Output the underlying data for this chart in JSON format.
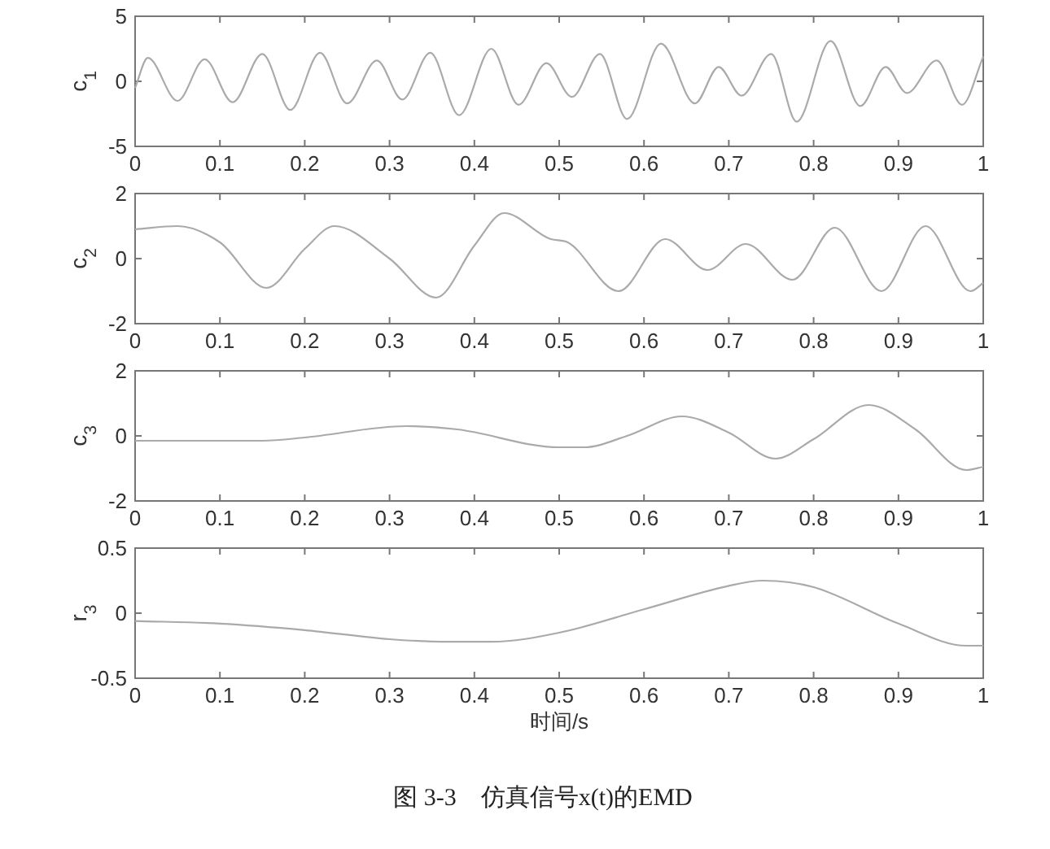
{
  "chart_data": [
    {
      "type": "line",
      "ylabel": "c$_{1}$",
      "xlim": [
        0,
        1
      ],
      "ylim": [
        -5,
        5
      ],
      "xticks": [
        0,
        0.1,
        0.2,
        0.3,
        0.4,
        0.5,
        0.6,
        0.7,
        0.8,
        0.9,
        1
      ],
      "yticks": [
        -5,
        0,
        5
      ],
      "grid": false,
      "series": [
        {
          "color": "#aaaaaa",
          "x": [
            0,
            0.015,
            0.05,
            0.082,
            0.115,
            0.15,
            0.183,
            0.218,
            0.25,
            0.285,
            0.315,
            0.348,
            0.382,
            0.42,
            0.452,
            0.485,
            0.515,
            0.548,
            0.58,
            0.62,
            0.66,
            0.688,
            0.715,
            0.75,
            0.78,
            0.82,
            0.855,
            0.885,
            0.91,
            0.945,
            0.975,
            1
          ],
          "values": [
            -0.5,
            1.8,
            -1.5,
            1.7,
            -1.6,
            2.1,
            -2.2,
            2.2,
            -1.7,
            1.6,
            -1.4,
            2.2,
            -2.6,
            2.5,
            -1.8,
            1.4,
            -1.2,
            2.1,
            -2.9,
            2.9,
            -1.7,
            1.1,
            -1.1,
            2.1,
            -3.1,
            3.1,
            -1.9,
            1.1,
            -0.9,
            1.6,
            -1.8,
            1.9
          ]
        }
      ]
    },
    {
      "type": "line",
      "ylabel": "c$_{2}$",
      "xlim": [
        0,
        1
      ],
      "ylim": [
        -2,
        2
      ],
      "xticks": [
        0,
        0.1,
        0.2,
        0.3,
        0.4,
        0.5,
        0.6,
        0.7,
        0.8,
        0.9,
        1
      ],
      "yticks": [
        -2,
        0,
        2
      ],
      "grid": false,
      "series": [
        {
          "color": "#aaaaaa",
          "x": [
            0,
            0.05,
            0.1,
            0.155,
            0.2,
            0.235,
            0.3,
            0.355,
            0.4,
            0.435,
            0.49,
            0.51,
            0.57,
            0.625,
            0.675,
            0.72,
            0.775,
            0.825,
            0.88,
            0.932,
            0.985,
            1
          ],
          "values": [
            0.9,
            1.0,
            0.5,
            -0.9,
            0.3,
            1.0,
            0.0,
            -1.2,
            0.4,
            1.4,
            0.6,
            0.5,
            -1.0,
            0.6,
            -0.35,
            0.45,
            -0.65,
            0.95,
            -1.0,
            1.0,
            -1.0,
            -0.75
          ]
        }
      ]
    },
    {
      "type": "line",
      "ylabel": "c$_{3}$",
      "xlim": [
        0,
        1
      ],
      "ylim": [
        -2,
        2
      ],
      "xticks": [
        0,
        0.1,
        0.2,
        0.3,
        0.4,
        0.5,
        0.6,
        0.7,
        0.8,
        0.9,
        1
      ],
      "yticks": [
        -2,
        0,
        2
      ],
      "grid": false,
      "series": [
        {
          "color": "#aaaaaa",
          "x": [
            0,
            0.15,
            0.2,
            0.32,
            0.38,
            0.5,
            0.53,
            0.58,
            0.645,
            0.7,
            0.755,
            0.8,
            0.865,
            0.92,
            0.98,
            1
          ],
          "values": [
            -0.15,
            -0.15,
            -0.05,
            0.3,
            0.2,
            -0.35,
            -0.35,
            0.0,
            0.6,
            0.1,
            -0.7,
            -0.1,
            0.95,
            0.2,
            -1.05,
            -0.95
          ]
        }
      ]
    },
    {
      "type": "line",
      "ylabel": "r$_{3}$",
      "xlabel": "时间/s",
      "xlim": [
        0,
        1
      ],
      "ylim": [
        -0.5,
        0.5
      ],
      "xticks": [
        0,
        0.1,
        0.2,
        0.3,
        0.4,
        0.5,
        0.6,
        0.7,
        0.8,
        0.9,
        1
      ],
      "yticks": [
        -0.5,
        0,
        0.5
      ],
      "grid": false,
      "annotations": [
        "图 3-3　仿真信号x(t)的EMD"
      ],
      "series": [
        {
          "color": "#aaaaaa",
          "x": [
            0,
            0.1,
            0.2,
            0.3,
            0.37,
            0.42,
            0.5,
            0.6,
            0.7,
            0.74,
            0.8,
            0.9,
            0.98,
            1
          ],
          "values": [
            -0.06,
            -0.08,
            -0.13,
            -0.2,
            -0.22,
            -0.22,
            -0.15,
            0.03,
            0.21,
            0.25,
            0.2,
            -0.08,
            -0.25,
            -0.25
          ]
        }
      ]
    }
  ]
}
